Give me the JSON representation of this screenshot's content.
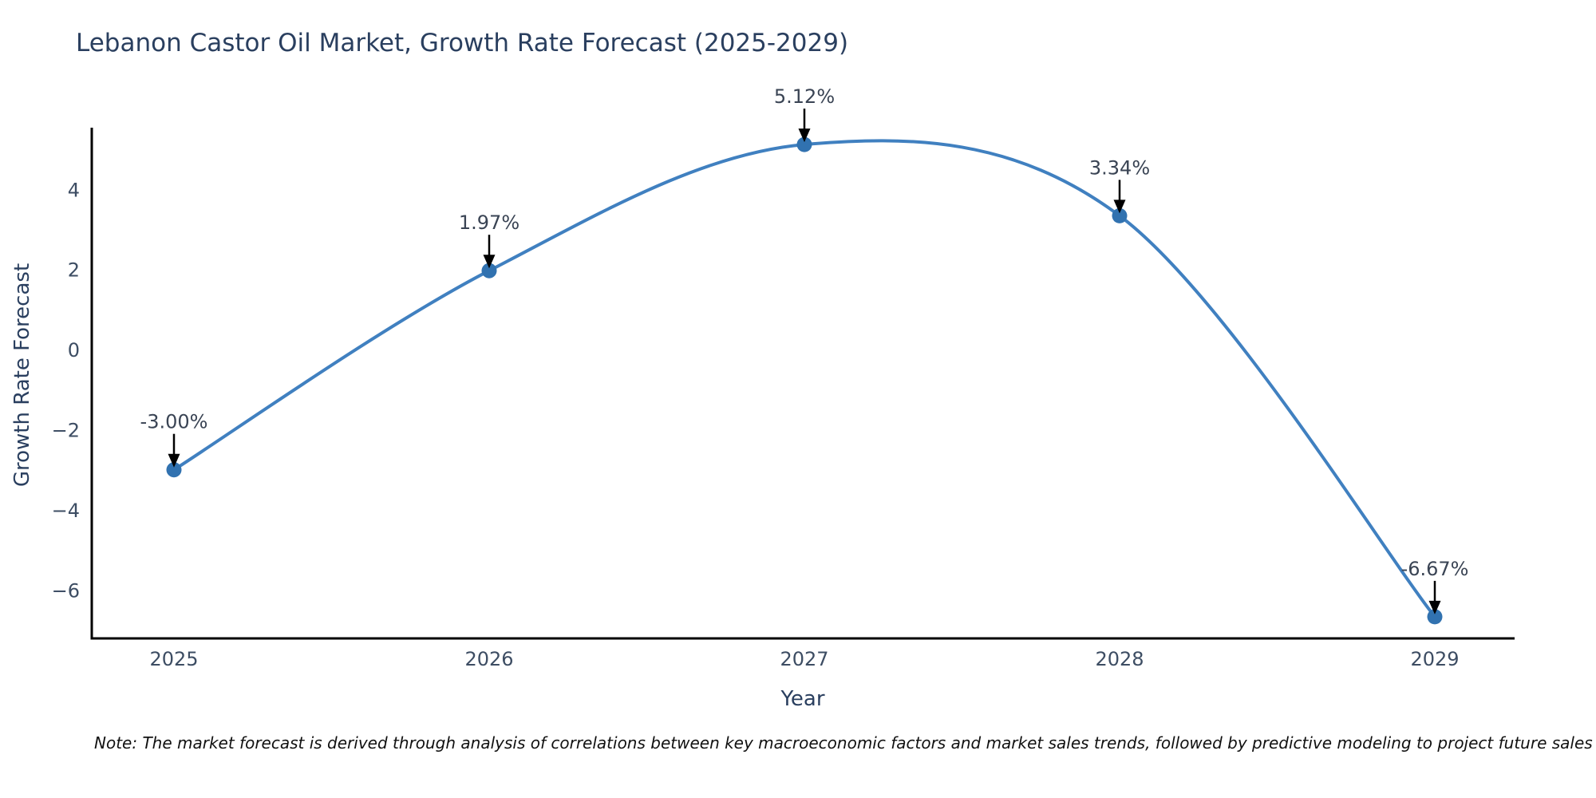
{
  "title": "Lebanon Castor Oil Market, Growth Rate Forecast (2025-2029)",
  "note": "Note: The market forecast is derived through analysis of correlations between key macroeconomic factors and market sales trends, followed by predictive modeling to project future sales",
  "chart_data": {
    "type": "line",
    "title": "Lebanon Castor Oil Market, Growth Rate Forecast (2025-2029)",
    "xlabel": "Year",
    "ylabel": "Growth Rate Forecast",
    "categories": [
      "2025",
      "2026",
      "2027",
      "2028",
      "2029"
    ],
    "values": [
      -3.0,
      1.97,
      5.12,
      3.34,
      -6.67
    ],
    "point_labels": [
      "-3.00%",
      "1.97%",
      "5.12%",
      "3.34%",
      "-6.67%"
    ],
    "yticks": [
      {
        "value": 4,
        "label": "4"
      },
      {
        "value": 2,
        "label": "2"
      },
      {
        "value": 0,
        "label": "0"
      },
      {
        "value": -2,
        "label": "−2"
      },
      {
        "value": -4,
        "label": "−4"
      },
      {
        "value": -6,
        "label": "−6"
      }
    ],
    "ylim": [
      -7.21,
      5.54
    ],
    "grid": false,
    "legend": null,
    "line_color": "#4080c0",
    "marker_color": "#3172b0",
    "annotation_text_color": "#3a4454",
    "arrow_color": "#000000",
    "spine_color": "#000000"
  },
  "colors": {
    "background": "#ffffff",
    "title": "#2a3f5f",
    "axis_title": "#2a3f5f",
    "tick_label": "#3d4d63",
    "note": "#111111"
  }
}
